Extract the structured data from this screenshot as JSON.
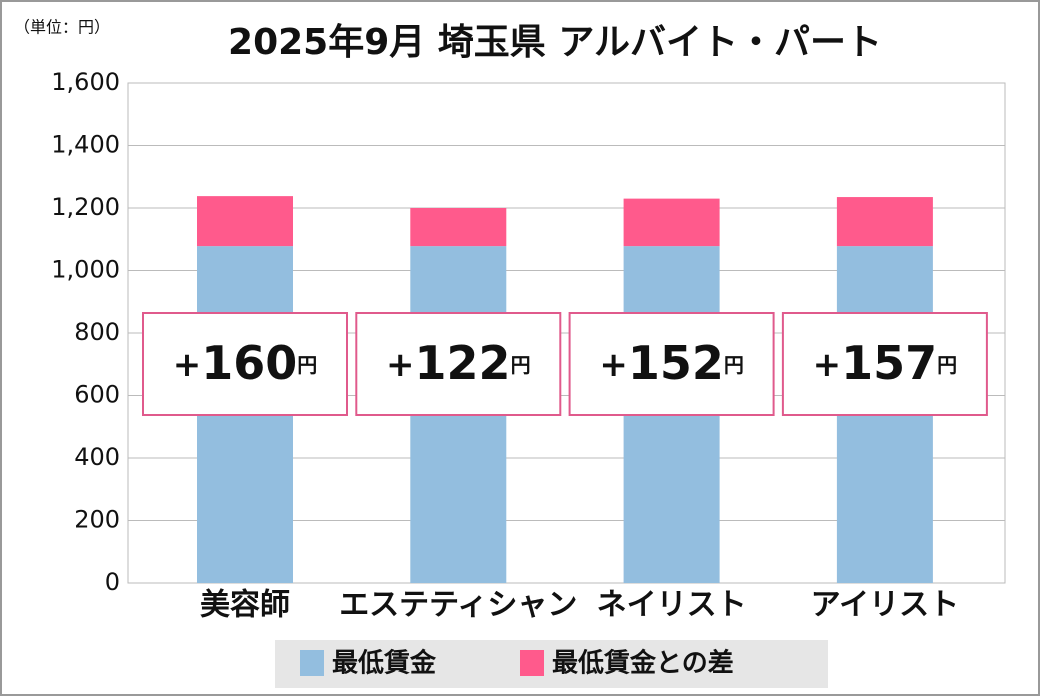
{
  "chart_data": {
    "type": "stacked_bar",
    "title": "2025年9月 埼玉県 アルバイト・パート",
    "unit_label": "（単位：円）",
    "categories": [
      "美容師",
      "エステティシャン",
      "ネイリスト",
      "アイリスト"
    ],
    "series": [
      {
        "name": "最低賃金",
        "color": "#93bedf",
        "values": [
          1078,
          1078,
          1078,
          1078
        ]
      },
      {
        "name": "最低賃金との差",
        "color": "#ff5a8c",
        "values": [
          160,
          122,
          152,
          157
        ],
        "value_labels": [
          "+160円",
          "+122円",
          "+152円",
          "+157円"
        ]
      }
    ],
    "ylim": [
      0,
      1600
    ],
    "yticks": [
      0,
      200,
      400,
      600,
      800,
      {
        "value": 1000,
        "label": "1,000"
      },
      {
        "value": 1200,
        "label": "1,200"
      },
      {
        "value": 1400,
        "label": "1,400"
      },
      {
        "value": 1600,
        "label": "1,600"
      }
    ],
    "grid": true
  }
}
